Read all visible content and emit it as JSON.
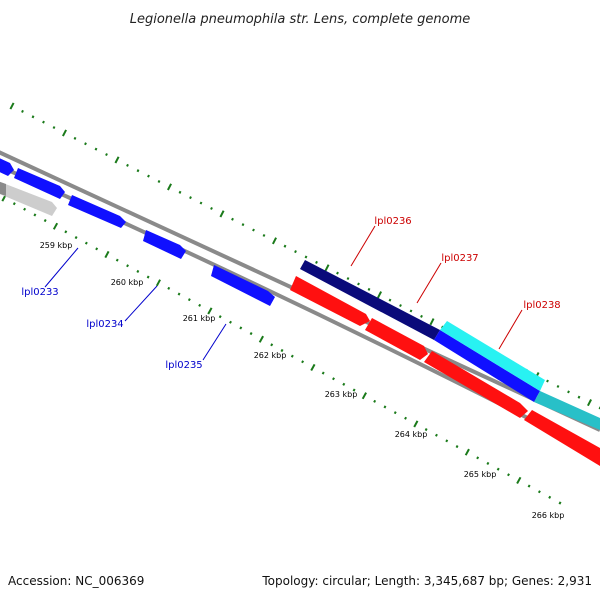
{
  "title": "Legionella pneumophila str. Lens, complete genome",
  "footer": {
    "accession": "Accession: NC_006369",
    "summary": "Topology: circular; Length: 3,345,687 bp; Genes: 2,931"
  },
  "colors": {
    "backbone": "#8a8a8a",
    "tick": "#1a7a1a",
    "forward_gene": "#1010ff",
    "forward_dark": "#0a0a7a",
    "reverse_gene": "#ff1010",
    "cyan_gene": "#28d8e0",
    "grey_gene": "#c8c8c8",
    "label_blue": "#0000cc",
    "label_red": "#cc0000"
  },
  "ruler": {
    "unit": "kbp",
    "labels": [
      "259 kbp",
      "260 kbp",
      "261 kbp",
      "262 kbp",
      "263 kbp",
      "264 kbp",
      "265 kbp",
      "266 kbp"
    ]
  },
  "gene_labels": [
    "lpl0233",
    "lpl0234",
    "lpl0235",
    "lpl0236",
    "lpl0237",
    "lpl0238"
  ]
}
